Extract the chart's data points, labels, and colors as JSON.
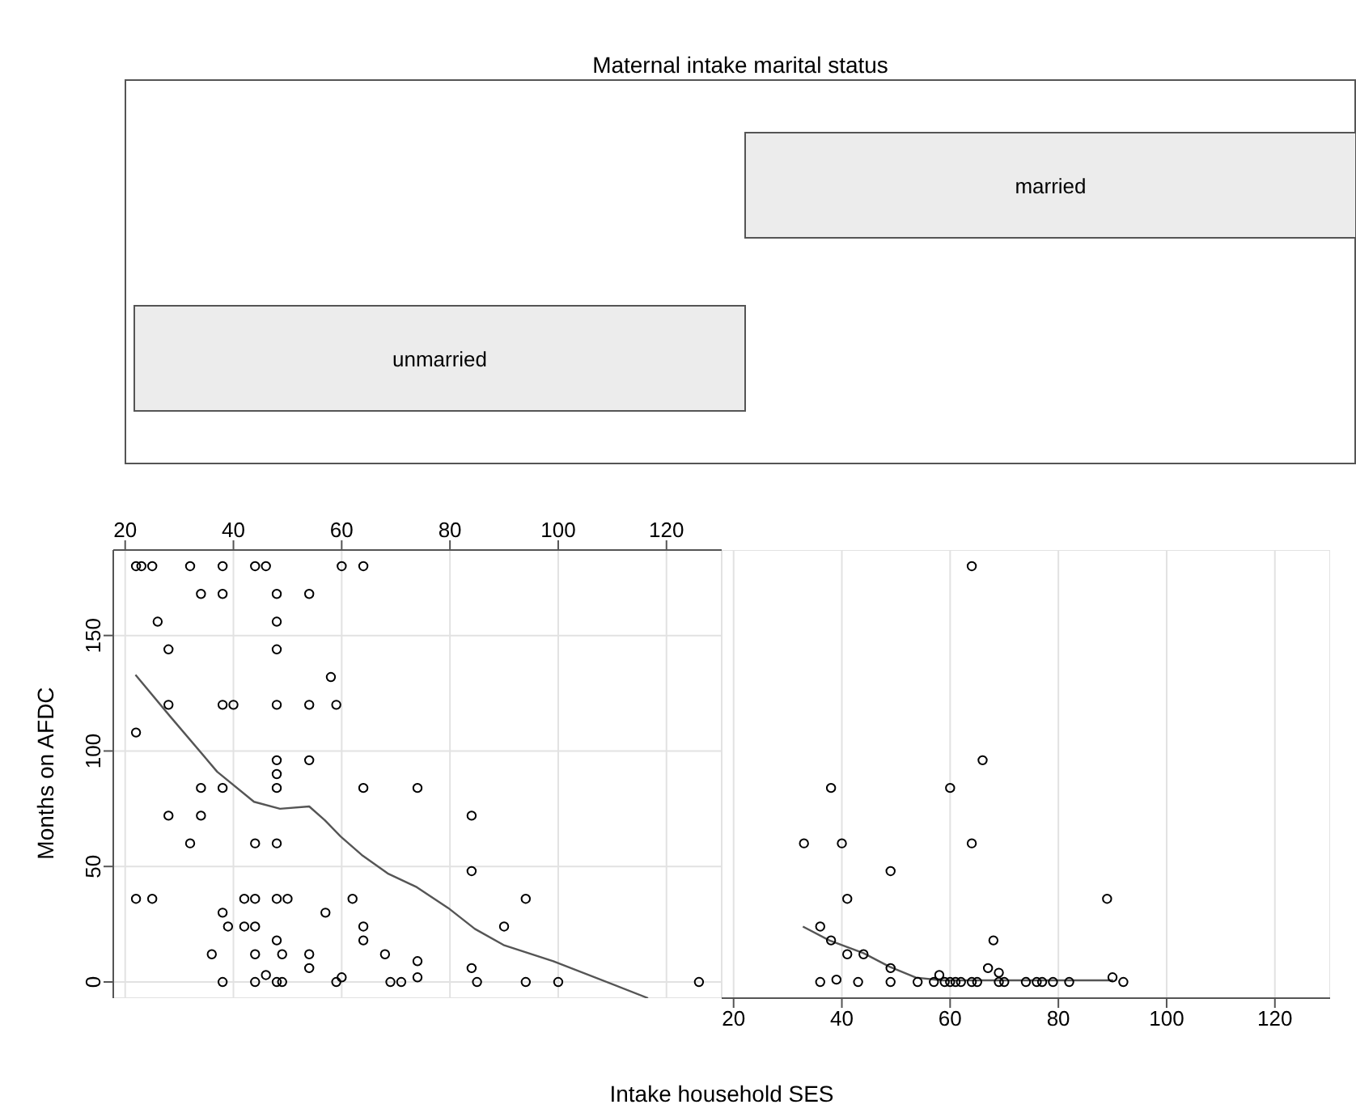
{
  "chart_data": [
    {
      "type": "other",
      "title": "Maternal intake marital status",
      "categories": [
        "unmarried",
        "married"
      ]
    },
    {
      "type": "scatter",
      "ylabel": "Months on AFDC",
      "xlim": [
        17.8,
        130.2
      ],
      "xticks": [
        20,
        40,
        60,
        80,
        100,
        120
      ],
      "ylim": [
        -7,
        187
      ],
      "yticks": [
        0,
        50,
        100,
        150
      ],
      "grid": true,
      "series": [
        {
          "color": "#000000",
          "marker": "circle",
          "x": [
            22,
            23,
            25,
            32,
            38,
            44,
            46,
            60,
            64,
            34,
            38,
            48,
            54,
            26,
            48,
            28,
            48,
            58,
            28,
            38,
            40,
            48,
            54,
            59,
            22,
            48,
            54,
            48,
            34,
            38,
            48,
            64,
            74,
            28,
            34,
            84,
            32,
            44,
            48,
            84,
            22,
            25,
            42,
            44,
            48,
            50,
            62,
            94,
            38,
            57,
            39,
            42,
            44,
            64,
            90,
            48,
            64,
            36,
            44,
            49,
            54,
            68,
            74,
            54,
            84,
            46,
            60,
            74,
            38,
            44,
            48,
            49,
            59,
            69,
            71,
            85,
            94,
            100,
            126
          ],
          "values": [
            180,
            180,
            180,
            180,
            180,
            180,
            180,
            180,
            180,
            168,
            168,
            168,
            168,
            156,
            156,
            144,
            144,
            132,
            120,
            120,
            120,
            120,
            120,
            120,
            108,
            96,
            96,
            90,
            84,
            84,
            84,
            84,
            84,
            72,
            72,
            72,
            60,
            60,
            60,
            48,
            36,
            36,
            36,
            36,
            36,
            36,
            36,
            36,
            30,
            30,
            24,
            24,
            24,
            24,
            24,
            18,
            18,
            12,
            12,
            12,
            12,
            12,
            9,
            6,
            6,
            3,
            2,
            2,
            0,
            0,
            0,
            0,
            0,
            0,
            0,
            0,
            0,
            0,
            0
          ]
        },
        {
          "type": "line",
          "color": "#555555",
          "marker": "none",
          "x": [
            21.9,
            28.3,
            37,
            43.8,
            48.6,
            54,
            56.9,
            59.8,
            63.7,
            68.5,
            73.9,
            79.7,
            84.6,
            89.9,
            99.1,
            116.6
          ],
          "values": [
            133,
            115,
            91,
            78,
            75,
            76,
            70,
            63,
            55,
            47,
            41,
            32,
            23,
            16,
            9,
            -7
          ]
        }
      ]
    },
    {
      "type": "scatter",
      "xlabel": "Intake household SES",
      "xlim": [
        17.8,
        130.2
      ],
      "xticks": [
        20,
        40,
        60,
        80,
        100,
        120
      ],
      "ylim": [
        -7,
        187
      ],
      "yticks": [
        0,
        50,
        100,
        150
      ],
      "grid": true,
      "tick_labels": "x",
      "series": [
        {
          "color": "#000000",
          "marker": "circle",
          "x": [
            64,
            66,
            38,
            60,
            33,
            40,
            64,
            49,
            41,
            89,
            36,
            38,
            68,
            41,
            44,
            49,
            67,
            69,
            58,
            39,
            90,
            36,
            43,
            49,
            54,
            57,
            59,
            60,
            61,
            62,
            64,
            65,
            69,
            70,
            74,
            76,
            77,
            79,
            82,
            92
          ],
          "values": [
            180,
            96,
            84,
            84,
            60,
            60,
            60,
            48,
            36,
            36,
            24,
            18,
            18,
            12,
            12,
            6,
            6,
            4,
            3,
            1,
            2,
            0,
            0,
            0,
            0,
            0,
            0,
            0,
            0,
            0,
            0,
            0,
            0,
            0,
            0,
            0,
            0,
            0,
            0,
            0
          ]
        },
        {
          "type": "line",
          "color": "#555555",
          "marker": "none",
          "x": [
            32.8,
            37.7,
            44,
            48.8,
            53.7,
            58.5,
            65.3,
            90.1
          ],
          "values": [
            24,
            18,
            12.5,
            6.6,
            1.9,
            0.7,
            0.7,
            0.7
          ]
        }
      ]
    }
  ]
}
